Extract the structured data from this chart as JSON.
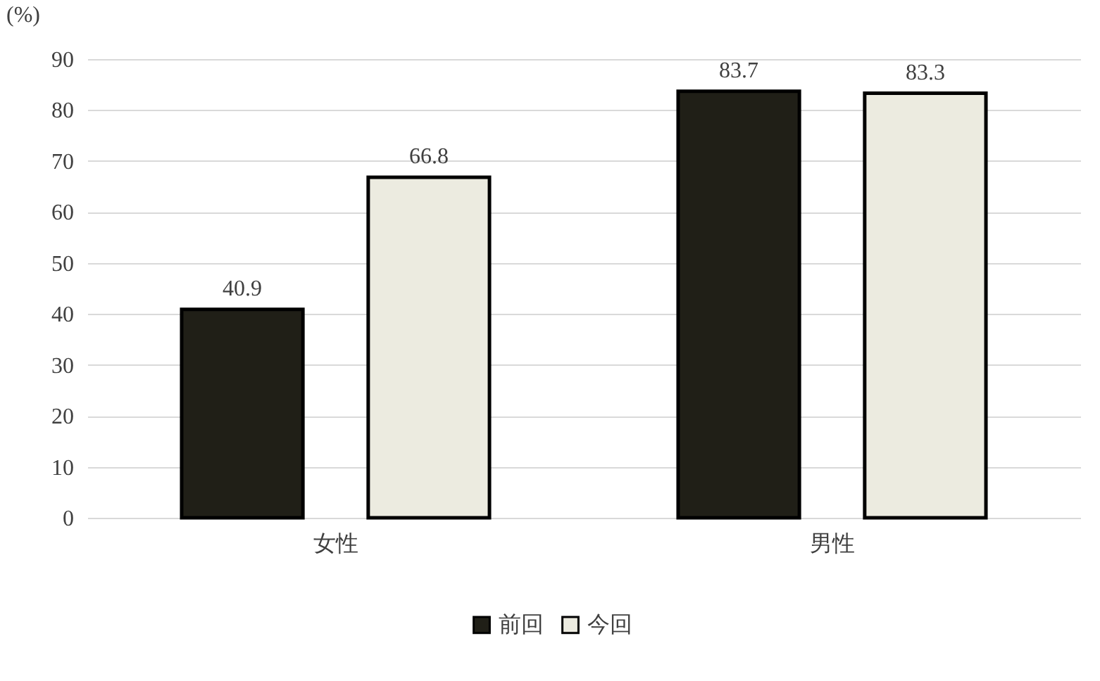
{
  "chart_data": {
    "type": "bar",
    "ylabel": "(%)",
    "categories": [
      "女性",
      "男性"
    ],
    "series": [
      {
        "name": "前回",
        "color": "#201f17",
        "values": [
          40.9,
          83.7
        ]
      },
      {
        "name": "今回",
        "color": "#ecebe0",
        "values": [
          66.8,
          83.3
        ]
      }
    ],
    "ylim": [
      0,
      90
    ],
    "yticks": [
      0,
      10,
      20,
      30,
      40,
      50,
      60,
      70,
      80,
      90
    ],
    "grid": "y",
    "legend": "bottom",
    "data_labels": true
  }
}
